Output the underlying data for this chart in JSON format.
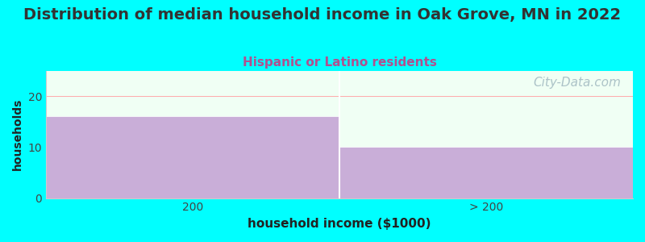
{
  "title": "Distribution of median household income in Oak Grove, MN in 2022",
  "subtitle": "Hispanic or Latino residents",
  "xlabel": "household income ($1000)",
  "ylabel": "households",
  "categories": [
    "200",
    "> 200"
  ],
  "values": [
    16,
    10
  ],
  "bar_color": "#c9aed8",
  "background_color": "#00ffff",
  "plot_bg_color": "#f0fff4",
  "title_fontsize": 14,
  "subtitle_fontsize": 11,
  "subtitle_color": "#b05090",
  "xlabel_fontsize": 11,
  "ylabel_fontsize": 10,
  "tick_fontsize": 10,
  "ylim": [
    0,
    25
  ],
  "yticks": [
    0,
    10,
    20
  ],
  "watermark": "City-Data.com",
  "watermark_color": "#a0b8c0",
  "watermark_fontsize": 11,
  "title_color": "#333333"
}
